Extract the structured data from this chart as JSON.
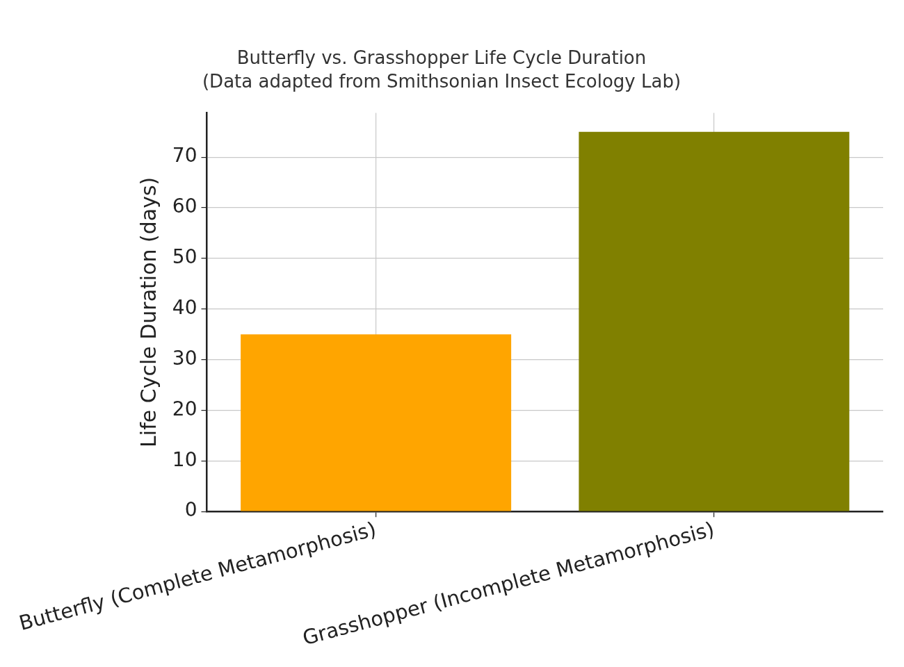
{
  "chart_data": {
    "type": "bar",
    "title": "Butterfly vs. Grasshopper Life Cycle Duration",
    "subtitle": "(Data adapted from Smithsonian Insect Ecology Lab)",
    "ylabel": "Life Cycle Duration (days)",
    "categories": [
      "Butterfly (Complete Metamorphosis)",
      "Grasshopper (Incomplete Metamorphosis)"
    ],
    "values": [
      35,
      75
    ],
    "colors": [
      "#ffa500",
      "#808000"
    ],
    "ylim": [
      0,
      78.75
    ],
    "yticks": [
      0,
      10,
      20,
      30,
      40,
      50,
      60,
      70
    ],
    "grid": true
  }
}
